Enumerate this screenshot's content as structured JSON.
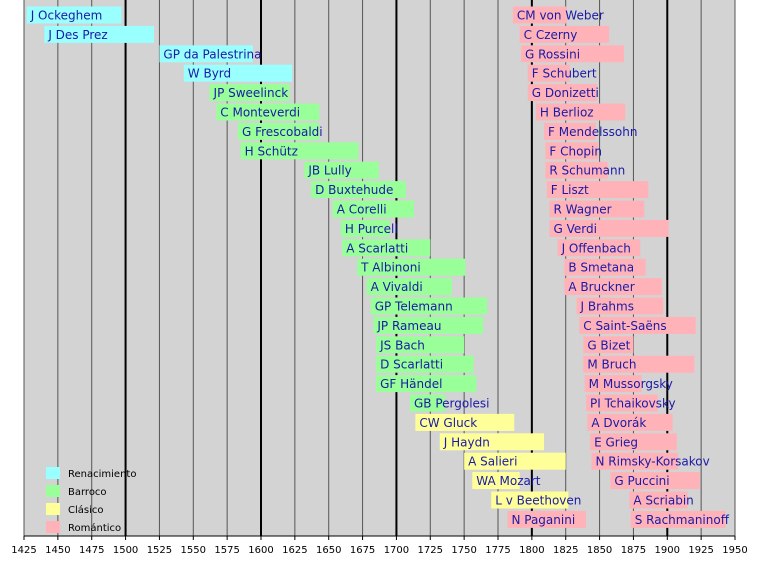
{
  "chart_data": {
    "type": "timeline",
    "title": "",
    "xlabel": "",
    "ylabel": "",
    "xlim": [
      1425,
      1950
    ],
    "xticks": [
      1425,
      1450,
      1475,
      1500,
      1525,
      1550,
      1575,
      1600,
      1625,
      1650,
      1675,
      1700,
      1725,
      1750,
      1775,
      1800,
      1825,
      1850,
      1875,
      1900,
      1925,
      1950
    ],
    "major_lines": [
      1500,
      1600,
      1700,
      1800,
      1900
    ],
    "grid": true,
    "legend_position": "bottom-left",
    "colors": {
      "renaissance": "#99ffff",
      "baroque": "#99ff99",
      "classical": "#ffff99",
      "romantic": "#ffb3b8",
      "plot_background": "#d3d3d3",
      "label_text": "#1a1aa6"
    },
    "legend": [
      {
        "key": "renaissance",
        "label": "Renacimiento"
      },
      {
        "key": "baroque",
        "label": "Barroco"
      },
      {
        "key": "classical",
        "label": "Clásico"
      },
      {
        "key": "romantic",
        "label": "Romántico"
      }
    ],
    "composers_col1": [
      {
        "name": "J Ockeghem",
        "start": 1427,
        "end": 1497,
        "period": "renaissance"
      },
      {
        "name": "J Des Prez",
        "start": 1440,
        "end": 1521,
        "period": "renaissance"
      },
      {
        "name": "GP da Palestrina",
        "start": 1525,
        "end": 1594,
        "period": "renaissance"
      },
      {
        "name": "W Byrd",
        "start": 1543,
        "end": 1623,
        "period": "renaissance"
      },
      {
        "name": "JP Sweelinck",
        "start": 1562,
        "end": 1621,
        "period": "baroque"
      },
      {
        "name": "C Monteverdi",
        "start": 1567,
        "end": 1643,
        "period": "baroque"
      },
      {
        "name": "G Frescobaldi",
        "start": 1583,
        "end": 1643,
        "period": "baroque"
      },
      {
        "name": "H Schütz",
        "start": 1585,
        "end": 1672,
        "period": "baroque"
      },
      {
        "name": "JB Lully",
        "start": 1632,
        "end": 1687,
        "period": "baroque"
      },
      {
        "name": "D Buxtehude",
        "start": 1637,
        "end": 1707,
        "period": "baroque"
      },
      {
        "name": "A Corelli",
        "start": 1653,
        "end": 1713,
        "period": "baroque"
      },
      {
        "name": "H Purcell",
        "start": 1659,
        "end": 1695,
        "period": "baroque"
      },
      {
        "name": "A Scarlatti",
        "start": 1660,
        "end": 1725,
        "period": "baroque"
      },
      {
        "name": "T Albinoni",
        "start": 1671,
        "end": 1751,
        "period": "baroque"
      },
      {
        "name": "A Vivaldi",
        "start": 1678,
        "end": 1741,
        "period": "baroque"
      },
      {
        "name": "GP Telemann",
        "start": 1681,
        "end": 1767,
        "period": "baroque"
      },
      {
        "name": "JP Rameau",
        "start": 1683,
        "end": 1764,
        "period": "baroque"
      },
      {
        "name": "JS Bach",
        "start": 1685,
        "end": 1750,
        "period": "baroque"
      },
      {
        "name": "D Scarlatti",
        "start": 1685,
        "end": 1757,
        "period": "baroque"
      },
      {
        "name": "GF Händel",
        "start": 1685,
        "end": 1759,
        "period": "baroque"
      },
      {
        "name": "GB Pergolesi",
        "start": 1710,
        "end": 1736,
        "period": "baroque"
      },
      {
        "name": "CW Gluck",
        "start": 1714,
        "end": 1787,
        "period": "classical"
      },
      {
        "name": "J Haydn",
        "start": 1732,
        "end": 1809,
        "period": "classical"
      },
      {
        "name": "A Salieri",
        "start": 1750,
        "end": 1825,
        "period": "classical"
      },
      {
        "name": "WA Mozart",
        "start": 1756,
        "end": 1791,
        "period": "classical"
      },
      {
        "name": "L v Beethoven",
        "start": 1770,
        "end": 1827,
        "period": "classical"
      },
      {
        "name": "N Paganini",
        "start": 1782,
        "end": 1840,
        "period": "romantic"
      }
    ],
    "composers_col2": [
      {
        "name": "CM von Weber",
        "start": 1786,
        "end": 1826,
        "period": "romantic"
      },
      {
        "name": "C Czerny",
        "start": 1791,
        "end": 1857,
        "period": "romantic"
      },
      {
        "name": "G Rossini",
        "start": 1792,
        "end": 1868,
        "period": "romantic"
      },
      {
        "name": "F Schubert",
        "start": 1797,
        "end": 1828,
        "period": "romantic"
      },
      {
        "name": "G Donizetti",
        "start": 1797,
        "end": 1848,
        "period": "romantic"
      },
      {
        "name": "H Berlioz",
        "start": 1803,
        "end": 1869,
        "period": "romantic"
      },
      {
        "name": "F Mendelssohn",
        "start": 1809,
        "end": 1847,
        "period": "romantic"
      },
      {
        "name": "F Chopin",
        "start": 1810,
        "end": 1849,
        "period": "romantic"
      },
      {
        "name": "R Schumann",
        "start": 1810,
        "end": 1856,
        "period": "romantic"
      },
      {
        "name": "F Liszt",
        "start": 1811,
        "end": 1886,
        "period": "romantic"
      },
      {
        "name": "R Wagner",
        "start": 1813,
        "end": 1883,
        "period": "romantic"
      },
      {
        "name": "G Verdi",
        "start": 1813,
        "end": 1901,
        "period": "romantic"
      },
      {
        "name": "J Offenbach",
        "start": 1819,
        "end": 1880,
        "period": "romantic"
      },
      {
        "name": "B Smetana",
        "start": 1824,
        "end": 1884,
        "period": "romantic"
      },
      {
        "name": "A Bruckner",
        "start": 1824,
        "end": 1896,
        "period": "romantic"
      },
      {
        "name": "J Brahms",
        "start": 1833,
        "end": 1897,
        "period": "romantic"
      },
      {
        "name": "C Saint-Saëns",
        "start": 1835,
        "end": 1921,
        "period": "romantic"
      },
      {
        "name": "G Bizet",
        "start": 1838,
        "end": 1875,
        "period": "romantic"
      },
      {
        "name": "M Bruch",
        "start": 1838,
        "end": 1920,
        "period": "romantic"
      },
      {
        "name": "M Mussorgsky",
        "start": 1839,
        "end": 1881,
        "period": "romantic"
      },
      {
        "name": "PI Tchaikovsky",
        "start": 1840,
        "end": 1893,
        "period": "romantic"
      },
      {
        "name": "A Dvorák",
        "start": 1841,
        "end": 1904,
        "period": "romantic"
      },
      {
        "name": "E Grieg",
        "start": 1843,
        "end": 1907,
        "period": "romantic"
      },
      {
        "name": "N Rimsky-Korsakov",
        "start": 1844,
        "end": 1908,
        "period": "romantic"
      },
      {
        "name": "G Puccini",
        "start": 1858,
        "end": 1924,
        "period": "romantic"
      },
      {
        "name": "A Scriabin",
        "start": 1872,
        "end": 1915,
        "period": "romantic"
      },
      {
        "name": "S Rachmaninoff",
        "start": 1873,
        "end": 1943,
        "period": "romantic"
      }
    ]
  }
}
